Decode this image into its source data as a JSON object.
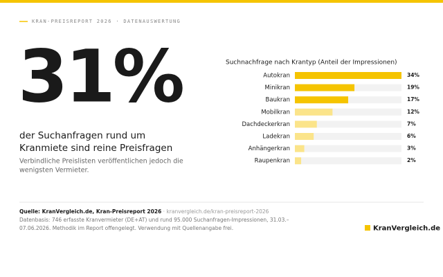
{
  "header": {
    "kicker": "KRAN-PREISREPORT 2026 · DATENAUSWERTUNG"
  },
  "hero": {
    "stat": "31%",
    "headline": [
      "der Suchanfragen rund um",
      "Kranmiete sind reine Preisfragen"
    ],
    "body": [
      "Verbindliche Preislisten veröffentlichen jedoch die",
      "wenigsten Vermieter."
    ]
  },
  "chart_data": {
    "type": "hbar",
    "title": "Suchnachfrage nach Krantyp (Anteil der Impressionen)",
    "categories": [
      "Autokran",
      "Minikran",
      "Baukran",
      "Mobilkran",
      "Dachdeckerkran",
      "Ladekran",
      "Anhängerkran",
      "Raupenkran"
    ],
    "values": [
      34,
      19,
      17,
      12,
      7,
      6,
      3,
      2
    ],
    "value_labels": [
      "34%",
      "19%",
      "17%",
      "12%",
      "7%",
      "6%",
      "3%",
      "2%"
    ],
    "colors": [
      "#f5c400",
      "#f5c400",
      "#f5c400",
      "#fbe48a",
      "#fbe48a",
      "#fbe48a",
      "#fbe48a",
      "#fbe48a"
    ]
  },
  "footer": {
    "source": "Quelle: KranVergleich.de, Kran-Preisreport 2026",
    "source_url": " · kranvergleich.de/kran-preisreport-2026",
    "note": [
      "Datenbasis: 746 erfasste Kranvermieter (DE+AT) und rund 95.000 Suchanfragen-Impressionen, 31.03.–",
      "07.06.2026. Methodik im Report offengelegt. Verwendung mit Quellenangabe frei."
    ],
    "logo": "KranVergleich.de"
  }
}
